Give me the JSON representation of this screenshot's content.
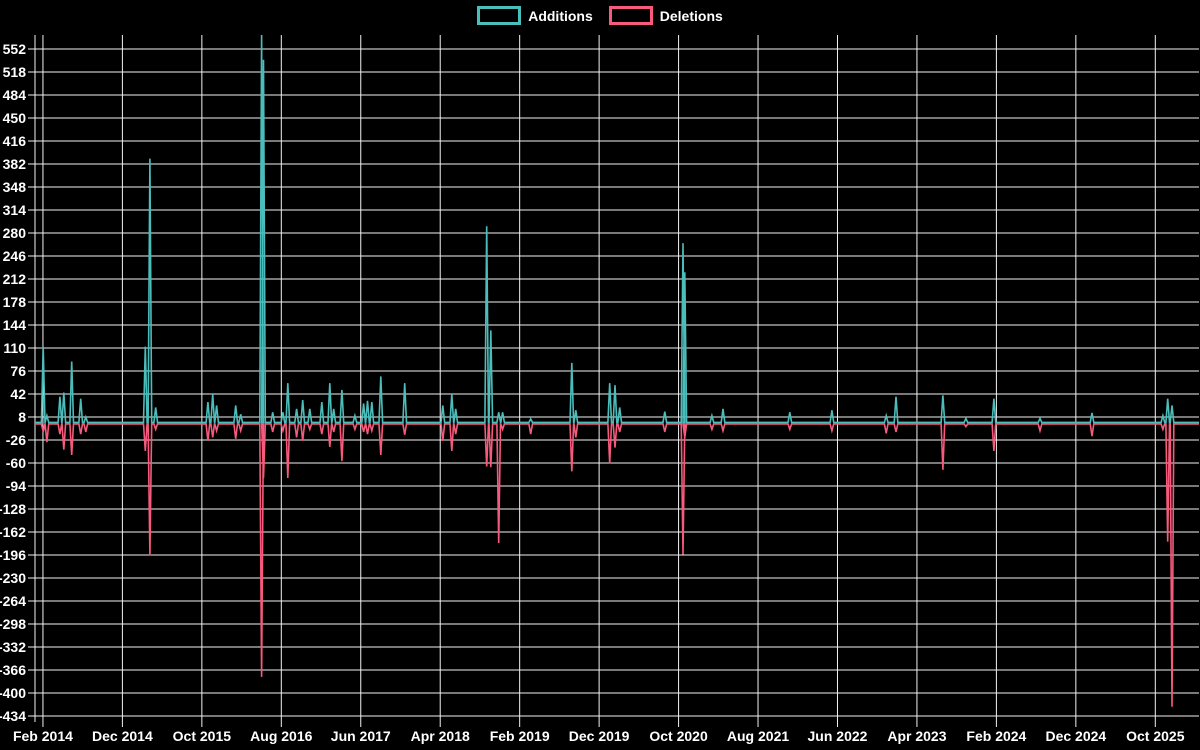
{
  "page": {
    "background": "#000000",
    "grid_color": "#f2f2f2",
    "text_color": "#ffffff"
  },
  "legend": {
    "items": [
      {
        "label": "Additions",
        "color": "#4bbebc"
      },
      {
        "label": "Deletions",
        "color": "#f65a7d"
      }
    ]
  },
  "chart_data": {
    "type": "line",
    "title": "",
    "xlabel": "",
    "ylabel": "",
    "grid": true,
    "legend_position": "top-center",
    "x_axis": {
      "domain_start": "2014-01-01",
      "domain_end": "2026-03-15",
      "tick_labels": [
        "Feb 2014",
        "Dec 2014",
        "Oct 2015",
        "Aug 2016",
        "Jun 2017",
        "Apr 2018",
        "Feb 2019",
        "Dec 2019",
        "Oct 2020",
        "Aug 2021",
        "Jun 2022",
        "Apr 2023",
        "Feb 2024",
        "Dec 2024",
        "Oct 2025"
      ],
      "tick_month_offsets": [
        1,
        11,
        21,
        31,
        41,
        51,
        61,
        71,
        81,
        91,
        101,
        111,
        121,
        131,
        141
      ]
    },
    "y_axis": {
      "min": -434,
      "max": 552,
      "tick_step": 34,
      "ticks": [
        552,
        518,
        484,
        450,
        416,
        382,
        348,
        314,
        280,
        246,
        212,
        178,
        144,
        110,
        76,
        42,
        8,
        -26,
        -60,
        -94,
        -128,
        -162,
        -196,
        -230,
        -264,
        -298,
        -332,
        -366,
        -400,
        -434
      ]
    },
    "baseline": 0,
    "notes": "Weekly additions/deletions; the May 2016 additions spike exceeds the visible axis and is clipped at the top of the plot.",
    "columns": [
      "week",
      "additions",
      "deletions"
    ],
    "points": [
      [
        "2014-02-02",
        112,
        -12
      ],
      [
        "2014-02-16",
        10,
        -27
      ],
      [
        "2014-04-05",
        38,
        -15
      ],
      [
        "2014-04-20",
        44,
        -38
      ],
      [
        "2014-05-20",
        90,
        -46
      ],
      [
        "2014-06-24",
        35,
        -15
      ],
      [
        "2014-07-13",
        8,
        -12
      ],
      [
        "2015-02-28",
        112,
        -40
      ],
      [
        "2015-03-15",
        390,
        -195
      ],
      [
        "2015-04-07",
        22,
        -8
      ],
      [
        "2015-10-24",
        30,
        -25
      ],
      [
        "2015-11-12",
        42,
        -20
      ],
      [
        "2015-11-27",
        25,
        -10
      ],
      [
        "2016-02-09",
        25,
        -22
      ],
      [
        "2016-02-28",
        12,
        -10
      ],
      [
        "2016-05-17",
        600,
        -374
      ],
      [
        "2016-05-24",
        536,
        -80
      ],
      [
        "2016-06-29",
        15,
        -12
      ],
      [
        "2016-08-07",
        15,
        -10
      ],
      [
        "2016-08-26",
        58,
        -80
      ],
      [
        "2016-09-29",
        20,
        -20
      ],
      [
        "2016-10-22",
        33,
        -25
      ],
      [
        "2016-11-19",
        20,
        -8
      ],
      [
        "2017-01-04",
        30,
        -15
      ],
      [
        "2017-02-04",
        58,
        -34
      ],
      [
        "2017-02-19",
        20,
        -12
      ],
      [
        "2017-03-20",
        48,
        -55
      ],
      [
        "2017-05-09",
        10,
        -8
      ],
      [
        "2017-06-12",
        28,
        -12
      ],
      [
        "2017-06-27",
        32,
        -15
      ],
      [
        "2017-07-13",
        30,
        -10
      ],
      [
        "2017-08-17",
        68,
        -46
      ],
      [
        "2017-11-17",
        58,
        -16
      ],
      [
        "2018-04-11",
        25,
        -25
      ],
      [
        "2018-05-15",
        42,
        -40
      ],
      [
        "2018-05-30",
        20,
        -15
      ],
      [
        "2018-09-27",
        290,
        -63
      ],
      [
        "2018-10-12",
        136,
        -64
      ],
      [
        "2018-11-12",
        15,
        -176
      ],
      [
        "2018-11-27",
        15,
        -8
      ],
      [
        "2019-03-13",
        5,
        -15
      ],
      [
        "2019-08-18",
        88,
        -70
      ],
      [
        "2019-09-03",
        18,
        -20
      ],
      [
        "2020-01-11",
        58,
        -58
      ],
      [
        "2020-02-01",
        55,
        -35
      ],
      [
        "2020-02-19",
        22,
        -12
      ],
      [
        "2020-08-09",
        16,
        -12
      ],
      [
        "2020-10-18",
        265,
        -193
      ],
      [
        "2020-10-25",
        222,
        -20
      ],
      [
        "2021-02-07",
        10,
        -8
      ],
      [
        "2021-03-19",
        20,
        -10
      ],
      [
        "2021-12-01",
        15,
        -8
      ],
      [
        "2022-05-10",
        18,
        -10
      ],
      [
        "2022-12-05",
        10,
        -14
      ],
      [
        "2023-01-12",
        38,
        -12
      ],
      [
        "2023-07-09",
        40,
        -68
      ],
      [
        "2023-10-06",
        6,
        -4
      ],
      [
        "2024-01-22",
        35,
        -40
      ],
      [
        "2024-07-16",
        6,
        -10
      ],
      [
        "2025-02-02",
        14,
        -18
      ],
      [
        "2025-10-30",
        10,
        -8
      ],
      [
        "2025-11-18",
        35,
        -174
      ],
      [
        "2025-12-04",
        25,
        -418
      ]
    ],
    "series": [
      {
        "name": "Additions",
        "color": "#4bbebc"
      },
      {
        "name": "Deletions",
        "color": "#f65a7d"
      }
    ]
  }
}
